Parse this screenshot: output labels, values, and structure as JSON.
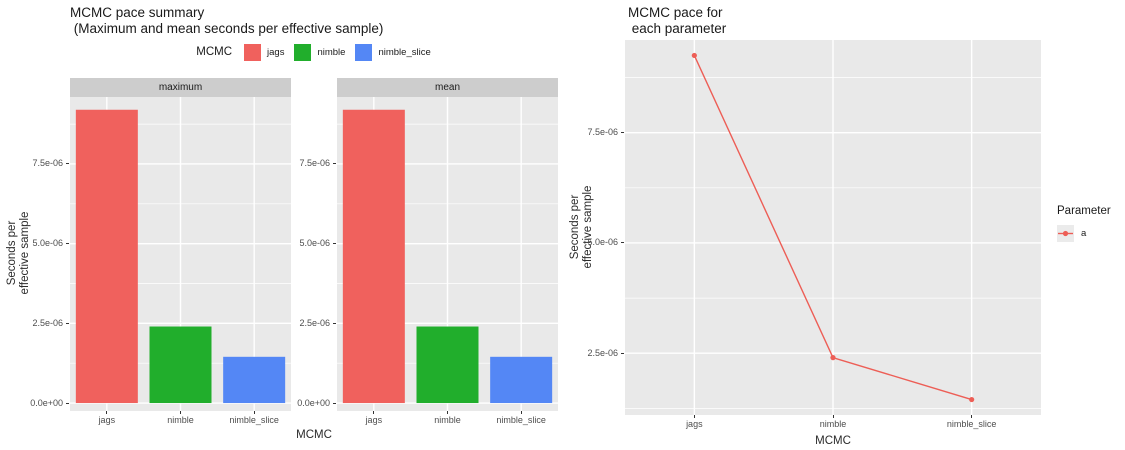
{
  "style": {
    "panel_bg": "#E9E9E9",
    "strip_bg": "#CDCDCD",
    "grid_color": "#FFFFFF",
    "tick_text_color": "#4D4D4D",
    "axis_title_color": "#2B2B2B",
    "tick_mark_color": "#333333",
    "legend_key_bg": "#EBEBEB"
  },
  "chart_data": [
    {
      "type": "bar",
      "title": "MCMC pace summary (Maximum and mean seconds per effective sample)",
      "title_lines": [
        "MCMC pace summary",
        " (Maximum and mean seconds per effective sample)"
      ],
      "legend": {
        "position": "top",
        "title": "MCMC",
        "items": [
          {
            "label": "jags",
            "color": "#F0615D"
          },
          {
            "label": "nimble",
            "color": "#21AE2C"
          },
          {
            "label": "nimble_slice",
            "color": "#5487F5"
          }
        ]
      },
      "facets": [
        "maximum",
        "mean"
      ],
      "categories": [
        "jags",
        "nimble",
        "nimble_slice"
      ],
      "series": [
        {
          "facet": "maximum",
          "values": [
            9.2e-06,
            2.4e-06,
            1.45e-06
          ]
        },
        {
          "facet": "mean",
          "values": [
            9.2e-06,
            2.4e-06,
            1.45e-06
          ]
        }
      ],
      "xlabel": "MCMC",
      "ylabel_lines": [
        "Seconds per",
        "effective sample"
      ],
      "ylabel": "Seconds per effective sample",
      "yticks": [
        0,
        2.5e-06,
        5e-06,
        7.5e-06
      ],
      "ytick_labels": [
        "0.0e+00",
        "2.5e-06",
        "5.0e-06",
        "7.5e-06"
      ],
      "yticks_minor": [
        1.25e-06,
        3.75e-06,
        6.25e-06,
        8.75e-06
      ],
      "ylim": [
        -2.5e-07,
        9.6e-06
      ],
      "grid": true
    },
    {
      "type": "line",
      "title": "MCMC pace for each parameter",
      "title_lines": [
        "MCMC pace for",
        " each parameter"
      ],
      "legend": {
        "position": "right",
        "title": "Parameter"
      },
      "categories": [
        "jags",
        "nimble",
        "nimble_slice"
      ],
      "series": [
        {
          "name": "a",
          "values": [
            9.25e-06,
            2.4e-06,
            1.45e-06
          ],
          "color": "#ED5E56"
        }
      ],
      "xlabel": "MCMC",
      "ylabel_lines": [
        "Seconds per",
        "effective sample"
      ],
      "ylabel": "Seconds per effective sample",
      "yticks": [
        2.5e-06,
        5e-06,
        7.5e-06
      ],
      "ytick_labels": [
        "2.5e-06",
        "5.0e-06",
        "7.5e-06"
      ],
      "yticks_minor": [
        1.25e-06,
        3.75e-06,
        6.25e-06,
        8.75e-06
      ],
      "ylim": [
        1.1e-06,
        9.6e-06
      ],
      "grid": true
    }
  ]
}
